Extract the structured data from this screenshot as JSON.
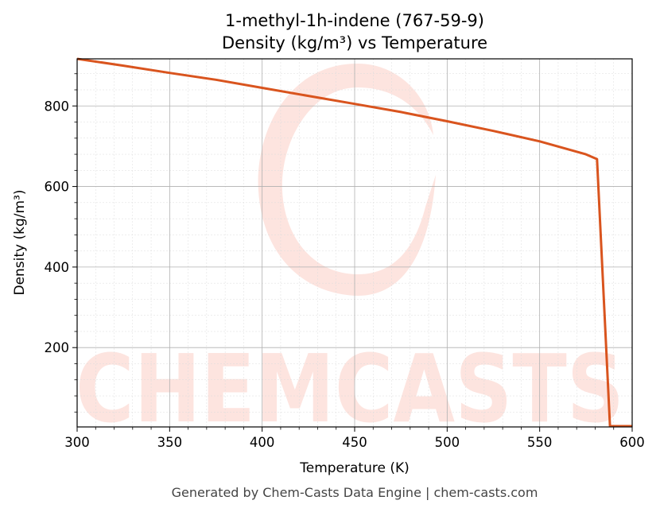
{
  "chart_data": {
    "type": "line",
    "title": "1-methyl-1h-indene (767-59-9)",
    "subtitle": "Density (kg/m³) vs Temperature",
    "xlabel": "Temperature (K)",
    "ylabel": "Density (kg/m³)",
    "xlim": [
      300,
      600
    ],
    "ylim": [
      3,
      917
    ],
    "x_ticks": [
      300,
      350,
      400,
      450,
      500,
      550,
      600
    ],
    "y_ticks": [
      200,
      400,
      600,
      800
    ],
    "grid": true,
    "line_color": "#d9541e",
    "series": [
      {
        "x": [
          300,
          325,
          350,
          375,
          400,
          425,
          450,
          475,
          500,
          525,
          550,
          575,
          581,
          588,
          600
        ],
        "y": [
          917,
          900,
          882,
          865,
          845,
          825,
          805,
          785,
          762,
          738,
          712,
          680,
          668,
          5,
          5
        ]
      }
    ]
  },
  "watermark": "CHEMCASTS",
  "footer": "Generated by Chem-Casts Data Engine | chem-casts.com"
}
